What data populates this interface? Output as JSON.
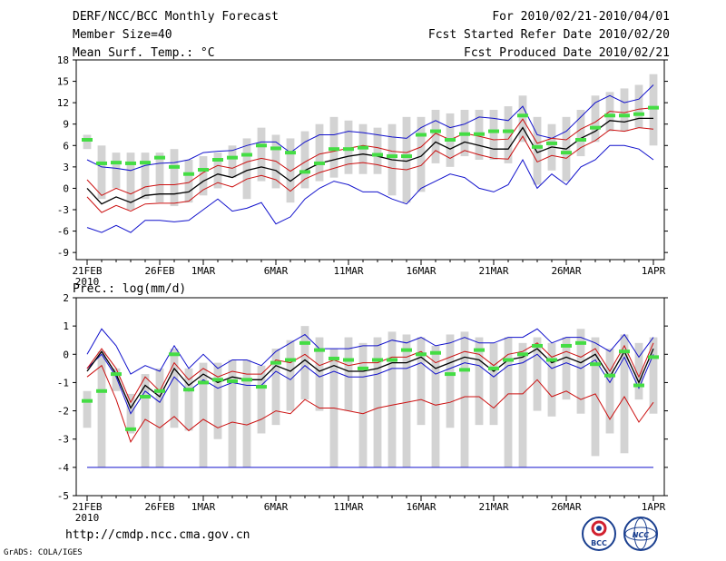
{
  "header": {
    "left": [
      "DERF/NCC/BCC Monthly Forecast",
      "Member Size=40",
      "Mean Surf. Temp.: °C"
    ],
    "right": [
      "For 2010/02/21-2010/04/01",
      "Fcst Started Refer Date 2010/02/20",
      "Fcst Produced Date 2010/02/21"
    ]
  },
  "footer": {
    "url": "http://cmdp.ncc.cma.gov.cn",
    "grads": "GrADS: COLA/IGES"
  },
  "logos": {
    "bcc": "BCC",
    "ncc": "NCC"
  },
  "colors": {
    "bar": "#d3d3d3",
    "obs": "#44dd44",
    "mean": "#000000",
    "inner": "#cc1111",
    "outer": "#1111cc",
    "axis": "#000000"
  },
  "chart_data": [
    {
      "type": "line",
      "title": "Mean Surf. Temp.: °C",
      "ylim": [
        -10,
        18
      ],
      "yticks": [
        18,
        15,
        12,
        9,
        6,
        3,
        0,
        -3,
        -6,
        -9
      ],
      "xlabels": [
        {
          "day": 0,
          "text": "21FEB"
        },
        {
          "day": 5,
          "text": "26FEB"
        },
        {
          "day": 8,
          "text": "1MAR"
        },
        {
          "day": 13,
          "text": "6MAR"
        },
        {
          "day": 18,
          "text": "11MAR"
        },
        {
          "day": 23,
          "text": "16MAR"
        },
        {
          "day": 28,
          "text": "21MAR"
        },
        {
          "day": 33,
          "text": "26MAR"
        },
        {
          "day": 39,
          "text": "1APR"
        }
      ],
      "year_label": "2010",
      "mean": [
        0.0,
        -2.2,
        -1.2,
        -2.0,
        -1.0,
        -0.8,
        -0.8,
        -0.5,
        1.0,
        2.0,
        1.5,
        2.5,
        3.0,
        2.5,
        1.0,
        2.5,
        3.5,
        4.0,
        4.5,
        4.8,
        4.5,
        4.0,
        3.8,
        4.5,
        6.5,
        5.5,
        6.5,
        6.0,
        5.5,
        5.5,
        8.5,
        5.0,
        5.8,
        5.5,
        7.0,
        8.0,
        9.5,
        9.3,
        9.8,
        9.8
      ],
      "upper_inner": [
        1.2,
        -1.0,
        0.0,
        -0.8,
        0.2,
        0.5,
        0.5,
        0.8,
        2.2,
        3.2,
        2.8,
        3.7,
        4.2,
        3.8,
        2.4,
        3.7,
        4.8,
        5.2,
        5.6,
        6.0,
        5.7,
        5.2,
        5.0,
        5.8,
        7.7,
        6.8,
        7.7,
        7.3,
        6.8,
        6.9,
        9.7,
        6.3,
        7.0,
        6.8,
        8.3,
        9.3,
        10.8,
        10.6,
        11.1,
        11.3
      ],
      "lower_inner": [
        -1.2,
        -3.4,
        -2.4,
        -3.2,
        -2.2,
        -2.1,
        -2.1,
        -1.8,
        -0.2,
        0.8,
        0.2,
        1.3,
        1.8,
        1.2,
        -0.4,
        1.3,
        2.2,
        2.8,
        3.4,
        3.6,
        3.3,
        2.8,
        2.6,
        3.2,
        5.3,
        4.2,
        5.3,
        4.7,
        4.2,
        4.1,
        7.3,
        3.7,
        4.6,
        4.2,
        5.7,
        6.7,
        8.2,
        8.0,
        8.5,
        8.3
      ],
      "upper_outer": [
        4.0,
        3.0,
        2.8,
        2.5,
        3.2,
        3.5,
        3.6,
        4.0,
        5.0,
        5.2,
        5.3,
        6.0,
        6.5,
        6.5,
        5.0,
        6.5,
        7.5,
        7.5,
        8.0,
        7.8,
        7.5,
        7.2,
        7.0,
        8.5,
        9.5,
        8.5,
        9.0,
        10.0,
        9.8,
        9.5,
        11.5,
        7.5,
        7.0,
        8.0,
        10.0,
        12.0,
        13.0,
        12.0,
        12.5,
        14.5
      ],
      "lower_outer": [
        -5.5,
        -6.2,
        -5.2,
        -6.2,
        -4.5,
        -4.5,
        -4.7,
        -4.5,
        -3.0,
        -1.5,
        -3.2,
        -2.8,
        -2.0,
        -5.0,
        -4.0,
        -1.5,
        0.0,
        1.0,
        0.5,
        -0.5,
        -0.5,
        -1.5,
        -2.2,
        0.0,
        1.0,
        2.0,
        1.5,
        0.0,
        -0.5,
        0.5,
        4.0,
        0.0,
        2.0,
        0.5,
        3.0,
        4.0,
        6.0,
        6.0,
        5.5,
        4.0
      ],
      "bars_low": [
        5.5,
        -1.5,
        0.0,
        -3.0,
        -1.5,
        -2.0,
        -2.5,
        -2.0,
        -1.0,
        0.0,
        1.5,
        -1.5,
        1.0,
        0.0,
        -2.0,
        0.0,
        1.0,
        1.5,
        2.0,
        2.0,
        2.0,
        -1.0,
        -2.0,
        -0.5,
        3.5,
        3.0,
        4.5,
        4.0,
        4.0,
        3.5,
        6.5,
        0.5,
        2.5,
        1.0,
        4.5,
        6.5,
        8.0,
        8.0,
        8.5,
        6.0
      ],
      "bars_high": [
        7.5,
        6.0,
        5.0,
        5.0,
        5.0,
        5.0,
        5.5,
        4.0,
        4.5,
        5.0,
        6.0,
        7.0,
        8.5,
        7.5,
        7.0,
        8.0,
        9.0,
        10.0,
        9.5,
        9.0,
        8.5,
        9.0,
        10.0,
        10.0,
        11.0,
        10.5,
        11.0,
        11.0,
        11.0,
        11.5,
        13.0,
        10.0,
        9.0,
        10.0,
        11.0,
        13.0,
        13.5,
        14.0,
        14.5,
        16.0
      ],
      "obs": [
        6.8,
        3.5,
        3.6,
        3.5,
        3.6,
        4.3,
        3.0,
        2.0,
        2.6,
        4.0,
        4.3,
        4.7,
        6.0,
        5.6,
        5.0,
        2.3,
        3.5,
        5.5,
        5.5,
        5.7,
        4.7,
        4.5,
        4.5,
        7.5,
        8.0,
        6.8,
        7.6,
        7.6,
        8.0,
        8.0,
        10.2,
        5.8,
        6.3,
        5.0,
        6.8,
        8.5,
        10.2,
        10.2,
        10.4,
        11.3
      ]
    },
    {
      "type": "line",
      "title": "Prec.: log(mm/d)",
      "ylim": [
        -5,
        2
      ],
      "yticks": [
        2,
        1,
        0,
        -1,
        -2,
        -3,
        -4,
        -5
      ],
      "xlabels": [
        {
          "day": 0,
          "text": "21FEB"
        },
        {
          "day": 5,
          "text": "26FEB"
        },
        {
          "day": 8,
          "text": "1MAR"
        },
        {
          "day": 13,
          "text": "6MAR"
        },
        {
          "day": 18,
          "text": "11MAR"
        },
        {
          "day": 23,
          "text": "16MAR"
        },
        {
          "day": 28,
          "text": "21MAR"
        },
        {
          "day": 33,
          "text": "26MAR"
        },
        {
          "day": 39,
          "text": "1APR"
        }
      ],
      "year_label": "2010",
      "reference_line": -4,
      "mean": [
        -0.6,
        0.1,
        -0.7,
        -1.9,
        -1.1,
        -1.5,
        -0.5,
        -1.1,
        -0.7,
        -1.0,
        -0.8,
        -0.9,
        -0.9,
        -0.4,
        -0.6,
        -0.2,
        -0.6,
        -0.4,
        -0.6,
        -0.6,
        -0.5,
        -0.3,
        -0.3,
        -0.1,
        -0.5,
        -0.3,
        -0.1,
        -0.2,
        -0.6,
        -0.2,
        -0.1,
        0.2,
        -0.3,
        -0.1,
        -0.3,
        0.0,
        -0.8,
        0.1,
        -1.0,
        0.2
      ],
      "upper_inner": [
        -0.5,
        0.2,
        -0.5,
        -1.7,
        -0.8,
        -1.3,
        -0.3,
        -0.9,
        -0.5,
        -0.8,
        -0.6,
        -0.7,
        -0.7,
        -0.2,
        -0.3,
        0.0,
        -0.4,
        -0.2,
        -0.4,
        -0.3,
        -0.3,
        -0.1,
        -0.1,
        0.1,
        -0.3,
        -0.1,
        0.1,
        0.0,
        -0.4,
        0.0,
        0.1,
        0.4,
        -0.1,
        0.1,
        -0.1,
        0.2,
        -0.6,
        0.3,
        -0.8,
        0.4
      ],
      "lower_inner": [
        -0.8,
        -0.4,
        -1.6,
        -3.1,
        -2.3,
        -2.6,
        -2.2,
        -2.7,
        -2.3,
        -2.6,
        -2.4,
        -2.5,
        -2.3,
        -2.0,
        -2.1,
        -1.6,
        -1.9,
        -1.9,
        -2.0,
        -2.1,
        -1.9,
        -1.8,
        -1.7,
        -1.6,
        -1.8,
        -1.7,
        -1.5,
        -1.5,
        -1.9,
        -1.4,
        -1.4,
        -0.9,
        -1.5,
        -1.3,
        -1.6,
        -1.4,
        -2.3,
        -1.5,
        -2.4,
        -1.7
      ],
      "upper_outer": [
        0.0,
        0.9,
        0.3,
        -0.7,
        -0.4,
        -0.6,
        0.3,
        -0.5,
        0.0,
        -0.5,
        -0.2,
        -0.2,
        -0.4,
        0.1,
        0.4,
        0.7,
        0.2,
        0.2,
        0.2,
        0.3,
        0.3,
        0.5,
        0.4,
        0.6,
        0.3,
        0.4,
        0.6,
        0.4,
        0.4,
        0.6,
        0.6,
        0.9,
        0.4,
        0.6,
        0.6,
        0.4,
        0.1,
        0.7,
        -0.1,
        0.6
      ],
      "lower_outer": [
        -0.5,
        0.0,
        -0.8,
        -2.1,
        -1.3,
        -1.7,
        -0.8,
        -1.3,
        -0.9,
        -1.2,
        -1.0,
        -1.1,
        -1.1,
        -0.6,
        -0.9,
        -0.4,
        -0.8,
        -0.6,
        -0.8,
        -0.8,
        -0.7,
        -0.5,
        -0.5,
        -0.3,
        -0.7,
        -0.5,
        -0.3,
        -0.4,
        -0.8,
        -0.4,
        -0.3,
        0.0,
        -0.5,
        -0.3,
        -0.5,
        -0.2,
        -1.0,
        -0.1,
        -1.2,
        0.0
      ],
      "bars_low": [
        -2.6,
        -4.0,
        -1.3,
        -2.8,
        -4.0,
        -4.0,
        -2.6,
        -2.7,
        -4.0,
        -3.0,
        -4.0,
        -4.0,
        -2.8,
        -2.5,
        -2.0,
        -1.6,
        -2.0,
        -4.0,
        -2.0,
        -4.0,
        -4.0,
        -4.0,
        -4.0,
        -2.5,
        -4.0,
        -2.6,
        -4.0,
        -2.5,
        -2.5,
        -4.0,
        -4.0,
        -2.0,
        -2.2,
        -1.6,
        -2.1,
        -3.6,
        -2.8,
        -3.5,
        -1.6,
        -2.1
      ],
      "bars_high": [
        -1.3,
        0.1,
        -0.5,
        -1.4,
        -0.7,
        -0.5,
        0.2,
        -0.5,
        -0.3,
        -0.3,
        -0.2,
        -0.2,
        -0.4,
        0.2,
        0.5,
        1.0,
        0.6,
        0.2,
        0.6,
        0.4,
        0.6,
        0.8,
        0.7,
        0.6,
        0.3,
        0.7,
        0.8,
        0.6,
        0.4,
        0.6,
        0.4,
        0.6,
        0.4,
        0.6,
        0.9,
        0.6,
        0.2,
        0.7,
        0.4,
        0.6
      ],
      "obs": [
        -1.65,
        -1.3,
        -0.7,
        -2.65,
        -1.5,
        -1.3,
        0.0,
        -1.25,
        -1.0,
        -0.9,
        -0.95,
        -0.9,
        -1.15,
        -0.3,
        -0.2,
        0.4,
        0.15,
        -0.15,
        -0.2,
        -0.5,
        -0.2,
        -0.2,
        0.15,
        0.0,
        0.05,
        -0.7,
        -0.55,
        0.15,
        -0.5,
        -0.2,
        0.0,
        0.3,
        -0.2,
        0.3,
        0.4,
        -0.35,
        -0.75,
        0.1,
        -1.1,
        -0.1
      ]
    }
  ]
}
